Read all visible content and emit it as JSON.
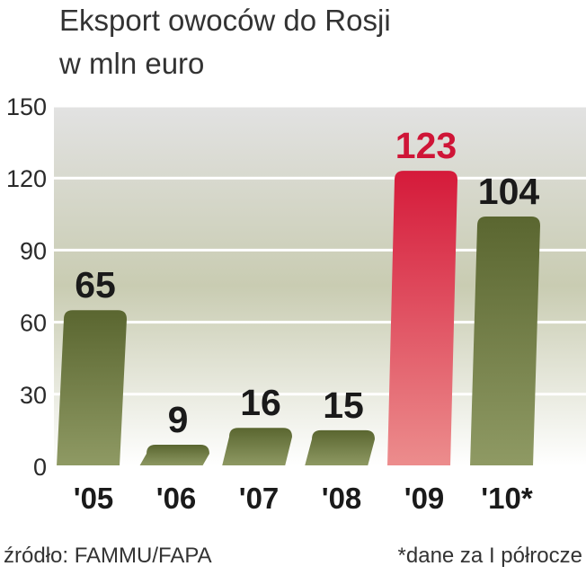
{
  "chart_data": {
    "type": "bar",
    "title": "Eksport owoców do Rosji",
    "subtitle": "w mln euro",
    "categories": [
      "'05",
      "'06",
      "'07",
      "'08",
      "'09",
      "'10*"
    ],
    "values": [
      65,
      9,
      16,
      15,
      123,
      104
    ],
    "data_labels": [
      "65",
      "9",
      "16",
      "15",
      "123",
      "104"
    ],
    "highlight_index": 4,
    "ylim": [
      0,
      150
    ],
    "yticks": [
      0,
      30,
      60,
      90,
      120,
      150
    ],
    "ytick_labels": [
      "0",
      "30",
      "60",
      "90",
      "120",
      "150"
    ],
    "grid": true,
    "xlabel": "",
    "ylabel": ""
  },
  "colors": {
    "bar": "#5a6630",
    "bar_light": "#8f9a64",
    "highlight": "#d51a3a",
    "highlight_light": "#ec8d8d",
    "highlight_label": "#cf1537",
    "label": "#1a1a1a",
    "band_top": "#e6e6e6",
    "band_green": "#c6c9ae"
  },
  "footer": {
    "source": "źródło: FAMMU/FAPA",
    "note": "*dane za I półrocze"
  }
}
